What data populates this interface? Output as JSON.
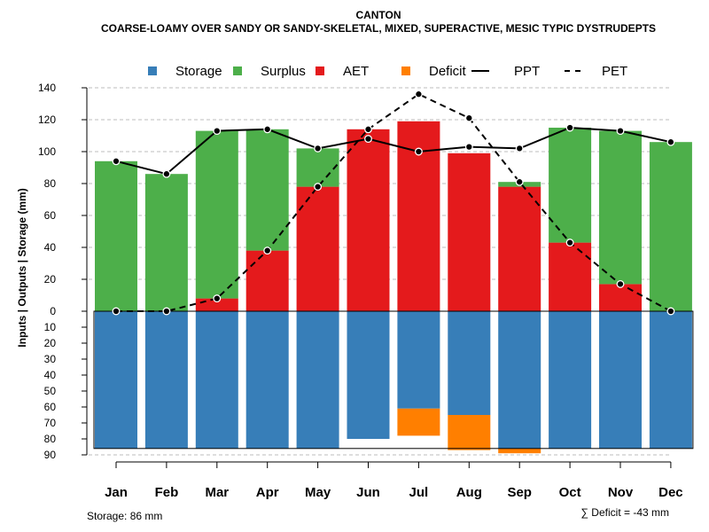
{
  "chart_data": {
    "type": "bar",
    "title": "CANTON",
    "subtitle": "COARSE-LOAMY OVER SANDY OR SANDY-SKELETAL, MIXED, SUPERACTIVE, MESIC TYPIC DYSTRUDEPTS",
    "ylabel": "Inputs | Outputs | Storage    (mm)",
    "ylim_top": [
      0,
      140
    ],
    "ylim_bottom": [
      0,
      90
    ],
    "yticks_top": [
      "0",
      "20",
      "40",
      "60",
      "80",
      "100",
      "120",
      "140"
    ],
    "yticks_bottom": [
      "10",
      "20",
      "30",
      "40",
      "50",
      "60",
      "70",
      "80",
      "90"
    ],
    "categories": [
      "Jan",
      "Feb",
      "Mar",
      "Apr",
      "May",
      "Jun",
      "Jul",
      "Aug",
      "Sep",
      "Oct",
      "Nov",
      "Dec"
    ],
    "legend": [
      {
        "name": "Storage",
        "kind": "box",
        "color": "#377EB8"
      },
      {
        "name": "Surplus",
        "kind": "box",
        "color": "#4DAF4A"
      },
      {
        "name": "AET",
        "kind": "box",
        "color": "#E41A1C"
      },
      {
        "name": "Deficit",
        "kind": "box",
        "color": "#FF7F00"
      },
      {
        "name": "PPT",
        "kind": "solid",
        "color": "#000000"
      },
      {
        "name": "PET",
        "kind": "dashed",
        "color": "#000000"
      }
    ],
    "series": [
      {
        "name": "AET",
        "values": [
          0,
          0,
          8,
          38,
          78,
          114,
          119,
          99,
          78,
          43,
          17,
          0
        ]
      },
      {
        "name": "Surplus",
        "values": [
          94,
          86,
          105,
          76,
          24,
          0,
          0,
          0,
          3,
          72,
          96,
          106
        ]
      },
      {
        "name": "Storage",
        "values": [
          86,
          86,
          86,
          86,
          86,
          80,
          61,
          65,
          86,
          86,
          86,
          86
        ]
      },
      {
        "name": "Deficit",
        "values": [
          0,
          0,
          0,
          0,
          0,
          0,
          17,
          22,
          3,
          0,
          0,
          0
        ]
      },
      {
        "name": "PPT",
        "values": [
          94,
          86,
          113,
          114,
          102,
          108,
          100,
          103,
          102,
          115,
          113,
          106
        ]
      },
      {
        "name": "PET",
        "values": [
          0,
          0,
          8,
          38,
          78,
          114,
          136,
          121,
          81,
          43,
          17,
          0
        ]
      }
    ],
    "colors": {
      "storage": "#377EB8",
      "surplus": "#4DAF4A",
      "aet": "#E41A1C",
      "deficit": "#FF7F00",
      "grid": "#BEBEBE"
    }
  },
  "footer": {
    "storage_note": "Storage: 86 mm",
    "deficit_note": "∑ Deficit = -43 mm"
  }
}
